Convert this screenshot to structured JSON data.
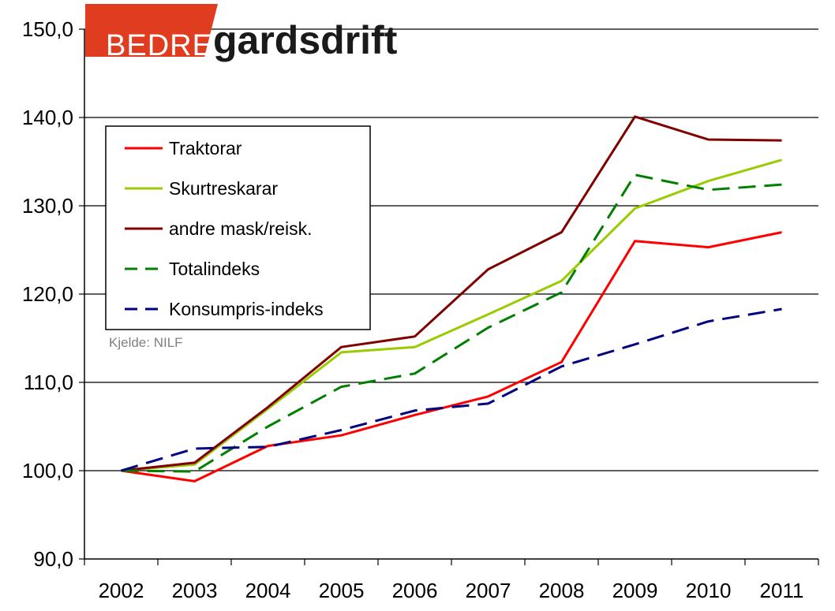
{
  "chart_data": {
    "type": "line",
    "categories": [
      "2002",
      "2003",
      "2004",
      "2005",
      "2006",
      "2007",
      "2008",
      "2009",
      "2010",
      "2011"
    ],
    "series": [
      {
        "name": "Traktorar",
        "color": "#ff0000",
        "dash": false,
        "values": [
          100.0,
          98.8,
          102.8,
          104.0,
          106.3,
          108.4,
          112.3,
          126.0,
          125.3,
          127.0
        ]
      },
      {
        "name": "Skurtreskarar",
        "color": "#99cc00",
        "dash": false,
        "values": [
          100.0,
          100.7,
          107.0,
          113.4,
          114.0,
          117.7,
          121.5,
          129.7,
          132.8,
          135.2
        ]
      },
      {
        "name": "andre mask/reisk.",
        "color": "#800000",
        "dash": false,
        "values": [
          100.0,
          100.9,
          107.2,
          114.0,
          115.2,
          122.8,
          127.0,
          140.1,
          137.5,
          137.4
        ]
      },
      {
        "name": "Totalindeks",
        "color": "#008000",
        "dash": true,
        "values": [
          100.0,
          99.9,
          105.0,
          109.5,
          111.0,
          116.2,
          120.2,
          133.5,
          131.8,
          132.4
        ]
      },
      {
        "name": "Konsumpris-indeks",
        "color": "#000080",
        "dash": true,
        "values": [
          100.0,
          102.5,
          102.7,
          104.6,
          106.8,
          107.6,
          111.8,
          114.3,
          116.9,
          118.3
        ]
      }
    ],
    "yticks": [
      "90,0",
      "100,0",
      "110,0",
      "120,0",
      "130,0",
      "140,0",
      "150,0"
    ],
    "ylim": [
      90,
      150
    ],
    "grid": true,
    "legend_position": "top-left",
    "source": "Kjelde: NILF"
  },
  "logo": {
    "bedre": "BEDRE",
    "main": "gardsdrift",
    "accent_color": "#e03c1f"
  }
}
